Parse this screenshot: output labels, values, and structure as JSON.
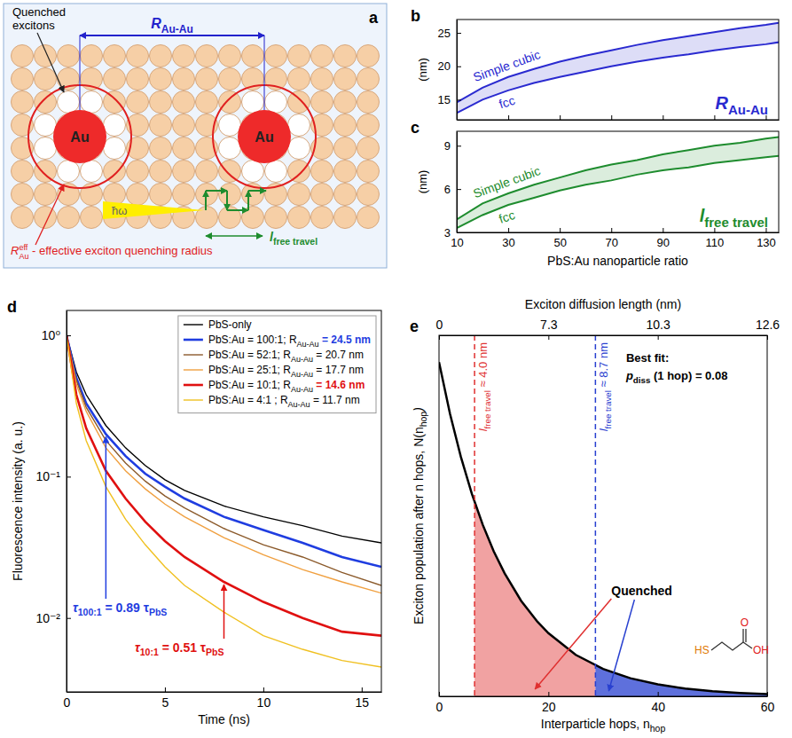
{
  "chart_data": [
    {
      "type": "diagram",
      "panel_label": "a",
      "labels": {
        "quenched": "Quenched excitons",
        "distance": [
          "R",
          "Au-Au"
        ],
        "radius": {
          "symbol": "R",
          "sup": "eff",
          "sub": "Au",
          "text": " - effective exciton quenching radius"
        },
        "particle": "Au",
        "photon": "ħω",
        "travel": [
          "l",
          "free travel"
        ]
      }
    },
    {
      "type": "band",
      "panel_label": "b",
      "x": [
        10,
        20,
        30,
        40,
        50,
        60,
        70,
        80,
        90,
        100,
        110,
        120,
        130,
        135
      ],
      "series": [
        {
          "name": "Simple cubic",
          "color": "#2a2ad0",
          "values": [
            14.6,
            16.8,
            18.4,
            19.6,
            20.7,
            21.6,
            22.4,
            23.2,
            23.9,
            24.5,
            25.1,
            25.7,
            26.2,
            26.5
          ]
        },
        {
          "name": "fcc",
          "color": "#2a2ad0",
          "values": [
            13.0,
            15.0,
            16.4,
            17.5,
            18.4,
            19.2,
            20.0,
            20.7,
            21.3,
            21.8,
            22.4,
            22.9,
            23.3,
            23.6
          ]
        }
      ],
      "xlim": [
        10,
        135
      ],
      "xticks": [
        10,
        30,
        50,
        70,
        90,
        110,
        130
      ],
      "ylim": [
        12,
        27
      ],
      "yticks": [
        15,
        20,
        25
      ],
      "y_label": "(nm)",
      "label": [
        "R",
        "Au-Au"
      ],
      "tick_labels": "y"
    },
    {
      "type": "band",
      "panel_label": "c",
      "x": [
        10,
        20,
        30,
        40,
        50,
        60,
        70,
        80,
        90,
        100,
        110,
        120,
        130,
        135
      ],
      "series": [
        {
          "name": "Simple cubic",
          "color": "#1e8c2e",
          "values": [
            3.9,
            5.0,
            5.7,
            6.3,
            6.8,
            7.3,
            7.7,
            8.0,
            8.4,
            8.7,
            9.0,
            9.2,
            9.5,
            9.6
          ]
        },
        {
          "name": "fcc",
          "color": "#1e8c2e",
          "values": [
            3.3,
            4.2,
            4.9,
            5.4,
            5.9,
            6.3,
            6.6,
            7.0,
            7.3,
            7.5,
            7.8,
            8.0,
            8.2,
            8.3
          ]
        }
      ],
      "xlim": [
        10,
        135
      ],
      "xticks": [
        10,
        30,
        50,
        70,
        90,
        110,
        130
      ],
      "ylim": [
        3,
        10
      ],
      "yticks": [
        3,
        6,
        9
      ],
      "x_label": "PbS:Au nanoparticle ratio",
      "y_label": "(nm)",
      "label": [
        "l",
        "free travel"
      ]
    },
    {
      "type": "line",
      "panel_label": "d",
      "log": "y",
      "x": [
        0,
        0.5,
        1,
        2,
        3,
        4,
        5,
        6,
        8,
        10,
        12,
        14,
        16
      ],
      "series": [
        {
          "name": [
            "PbS-only"
          ],
          "color": "#000000",
          "values": [
            1,
            0.55,
            0.38,
            0.23,
            0.16,
            0.12,
            0.095,
            0.08,
            0.062,
            0.052,
            0.045,
            0.038,
            0.034
          ]
        },
        {
          "name": [
            "PbS:Au = 100:1; R",
            "Au-Au",
            " = 24.5 nm"
          ],
          "color": "#1f3de0",
          "line_style": "thick",
          "values": [
            1,
            0.5,
            0.33,
            0.2,
            0.14,
            0.105,
            0.085,
            0.07,
            0.052,
            0.042,
            0.034,
            0.027,
            0.023
          ]
        },
        {
          "name": [
            "PbS:Au = 52:1; R",
            "Au-Au",
            " = 20.7 nm"
          ],
          "color": "#8b5a2b",
          "values": [
            1,
            0.48,
            0.31,
            0.18,
            0.125,
            0.093,
            0.073,
            0.06,
            0.043,
            0.033,
            0.027,
            0.021,
            0.017
          ]
        },
        {
          "name": [
            "PbS:Au = 25:1; R",
            "Au-Au",
            " = 17.7 nm"
          ],
          "color": "#f0a040",
          "values": [
            1,
            0.45,
            0.29,
            0.16,
            0.11,
            0.082,
            0.064,
            0.052,
            0.037,
            0.028,
            0.022,
            0.018,
            0.015
          ]
        },
        {
          "name": [
            "PbS:Au = 10:1; R",
            "Au-Au",
            " = 14.6 nm"
          ],
          "color": "#e01010",
          "line_style": "thick",
          "values": [
            1,
            0.38,
            0.22,
            0.11,
            0.07,
            0.048,
            0.035,
            0.027,
            0.018,
            0.013,
            0.01,
            0.008,
            0.0075
          ]
        },
        {
          "name": [
            "PbS:Au = 4:1 ; R",
            "Au-Au",
            " = 11.7 nm"
          ],
          "color": "#f0c020",
          "values": [
            1,
            0.33,
            0.18,
            0.085,
            0.05,
            0.033,
            0.023,
            0.017,
            0.011,
            0.0075,
            0.006,
            0.005,
            0.0045
          ]
        }
      ],
      "xlim": [
        0,
        16
      ],
      "xticks": [
        0,
        5,
        10,
        15
      ],
      "ylim": [
        0.003,
        1.5
      ],
      "yticks": [
        {
          "value": 0.01,
          "label": "10⁻²"
        },
        {
          "value": 0.1,
          "label": "10⁻¹"
        },
        {
          "value": 1,
          "label": "10⁰"
        }
      ],
      "x_label": "Time (ns)",
      "y_label": "Fluorescence intensity (a. u.)",
      "legend": "upper right",
      "annotations": [
        {
          "parts": [
            "τ",
            "100:1",
            " = 0.89 τ",
            "PbS"
          ],
          "color": "#1f3de0"
        },
        {
          "parts": [
            "τ",
            "10:1",
            " = 0.51 τ",
            "PbS"
          ],
          "color": "#e01010"
        }
      ]
    },
    {
      "type": "line",
      "panel_label": "e",
      "x": [
        0,
        2,
        4,
        6,
        8,
        10,
        12,
        15,
        18,
        20,
        25,
        30,
        35,
        40,
        45,
        50,
        55,
        60
      ],
      "values": [
        1,
        0.846,
        0.716,
        0.606,
        0.513,
        0.434,
        0.368,
        0.286,
        0.223,
        0.189,
        0.124,
        0.082,
        0.054,
        0.036,
        0.023,
        0.015,
        0.01,
        0.0068
      ],
      "color": "#000000",
      "xlim": [
        0,
        60
      ],
      "xticks": [
        0,
        20,
        40,
        60
      ],
      "x2ticks": [
        0,
        {
          "value": 20,
          "label": "7.3"
        },
        {
          "value": 40,
          "label": "10.3"
        },
        {
          "value": 60,
          "label": "12.6"
        }
      ],
      "ylim": [
        0,
        1.08
      ],
      "tick_labels": "x",
      "x_label": [
        "Interparticle hops, n",
        "hop"
      ],
      "x2_label": "Exciton diffusion length (nm)",
      "y_label": [
        "Exciton population after n hops, N(n",
        "hop",
        ")"
      ],
      "markers": [
        {
          "x": 6.5,
          "parts": [
            "l",
            "free travel",
            " ≈ 4.0 nm"
          ],
          "color": "#e03030"
        },
        {
          "x": 28.6,
          "parts": [
            "l",
            "free travel",
            " ≈ 8.7 nm"
          ],
          "color": "#2840d0"
        }
      ],
      "fit_title": "Best fit:",
      "fit": [
        "p",
        "diss",
        " (1 hop) = 0.08"
      ],
      "quenched": "Quenched",
      "molecule": [
        "HS",
        "O",
        "OH"
      ]
    }
  ]
}
